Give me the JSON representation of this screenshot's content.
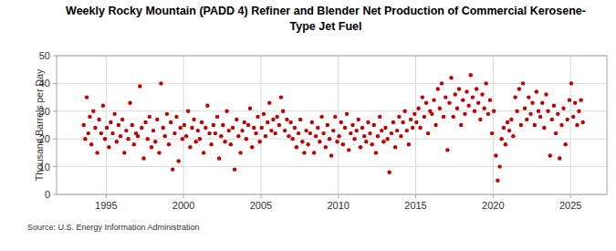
{
  "chart_data": {
    "type": "scatter",
    "title": "Weekly Rocky Mountain (PADD 4)  Refiner and Blender Net Production of Commercial Kerosene-Type Jet Fuel",
    "y_label": "Thousand Barrels per Day",
    "annotations": [
      "Source: U.S. Energy Information Administration"
    ],
    "xlim": [
      1991.8,
      2027.35
    ],
    "xticks": [
      1995,
      2000,
      2005,
      2010,
      2015,
      2020,
      2025
    ],
    "ylim": [
      0,
      50
    ],
    "yticks": [
      0,
      10,
      20,
      30,
      40,
      50
    ],
    "grid": true,
    "marker": "circle",
    "series": [
      {
        "name": "Commercial Kerosene-Type Jet Fuel",
        "color": "#c00000",
        "x": [
          1993.55,
          1993.65,
          1993.75,
          1993.85,
          1993.95,
          1994.05,
          1994.18,
          1994.3,
          1994.43,
          1994.55,
          1994.68,
          1994.8,
          1994.93,
          1995.05,
          1995.18,
          1995.3,
          1995.43,
          1995.55,
          1995.68,
          1995.8,
          1995.93,
          1996.05,
          1996.18,
          1996.3,
          1996.43,
          1996.55,
          1996.68,
          1996.8,
          1996.93,
          1997.05,
          1997.18,
          1997.3,
          1997.43,
          1997.55,
          1997.68,
          1997.8,
          1997.93,
          1998.05,
          1998.18,
          1998.3,
          1998.43,
          1998.55,
          1998.68,
          1998.8,
          1998.93,
          1999.05,
          1999.18,
          1999.3,
          1999.43,
          1999.55,
          1999.68,
          1999.8,
          1999.93,
          2000.05,
          2000.18,
          2000.3,
          2000.43,
          2000.55,
          2000.68,
          2000.8,
          2000.93,
          2001.05,
          2001.18,
          2001.3,
          2001.43,
          2001.55,
          2001.68,
          2001.8,
          2001.93,
          2002.05,
          2002.18,
          2002.3,
          2002.43,
          2002.55,
          2002.68,
          2002.8,
          2002.93,
          2003.05,
          2003.18,
          2003.3,
          2003.43,
          2003.55,
          2003.68,
          2003.8,
          2003.93,
          2004.05,
          2004.18,
          2004.3,
          2004.43,
          2004.55,
          2004.68,
          2004.8,
          2004.93,
          2005.05,
          2005.18,
          2005.3,
          2005.43,
          2005.55,
          2005.68,
          2005.8,
          2005.93,
          2006.05,
          2006.18,
          2006.3,
          2006.43,
          2006.55,
          2006.68,
          2006.8,
          2006.93,
          2007.05,
          2007.18,
          2007.3,
          2007.43,
          2007.55,
          2007.68,
          2007.8,
          2007.93,
          2008.05,
          2008.18,
          2008.3,
          2008.43,
          2008.55,
          2008.68,
          2008.8,
          2008.93,
          2009.05,
          2009.18,
          2009.3,
          2009.43,
          2009.55,
          2009.68,
          2009.8,
          2009.93,
          2010.05,
          2010.18,
          2010.3,
          2010.43,
          2010.55,
          2010.68,
          2010.8,
          2010.93,
          2011.05,
          2011.18,
          2011.3,
          2011.43,
          2011.55,
          2011.68,
          2011.8,
          2011.93,
          2012.05,
          2012.18,
          2012.3,
          2012.43,
          2012.55,
          2012.68,
          2012.8,
          2012.93,
          2013.05,
          2013.18,
          2013.3,
          2013.43,
          2013.55,
          2013.68,
          2013.8,
          2013.93,
          2014.05,
          2014.18,
          2014.3,
          2014.43,
          2014.55,
          2014.68,
          2014.8,
          2014.93,
          2015.05,
          2015.18,
          2015.3,
          2015.43,
          2015.55,
          2015.68,
          2015.8,
          2015.93,
          2016.05,
          2016.18,
          2016.3,
          2016.43,
          2016.55,
          2016.68,
          2016.8,
          2016.93,
          2017.05,
          2017.18,
          2017.3,
          2017.43,
          2017.55,
          2017.68,
          2017.8,
          2017.93,
          2018.05,
          2018.18,
          2018.3,
          2018.43,
          2018.55,
          2018.68,
          2018.8,
          2018.93,
          2019.05,
          2019.18,
          2019.3,
          2019.43,
          2019.55,
          2019.68,
          2019.8,
          2019.93,
          2020.05,
          2020.18,
          2020.3,
          2020.43,
          2020.55,
          2020.68,
          2020.8,
          2020.93,
          2021.05,
          2021.18,
          2021.3,
          2021.43,
          2021.55,
          2021.68,
          2021.8,
          2021.93,
          2022.05,
          2022.18,
          2022.3,
          2022.43,
          2022.55,
          2022.68,
          2022.8,
          2022.93,
          2023.05,
          2023.18,
          2023.3,
          2023.43,
          2023.55,
          2023.68,
          2023.8,
          2023.93,
          2024.05,
          2024.18,
          2024.3,
          2024.43,
          2024.55,
          2024.68,
          2024.8,
          2024.93,
          2025.05,
          2025.18,
          2025.3,
          2025.43,
          2025.55,
          2025.68,
          2025.8
        ],
        "values": [
          25,
          20,
          35,
          22,
          28,
          18,
          30,
          24,
          15,
          27,
          22,
          32,
          20,
          24,
          17,
          26,
          22,
          29,
          19,
          25,
          21,
          27,
          15,
          23,
          20,
          33,
          25,
          18,
          22,
          21,
          39,
          24,
          13,
          26,
          20,
          28,
          17,
          23,
          19,
          27,
          15,
          40,
          24,
          21,
          29,
          18,
          26,
          9,
          22,
          28,
          12,
          24,
          20,
          25,
          21,
          30,
          17,
          24,
          27,
          19,
          23,
          20,
          26,
          15,
          24,
          32,
          22,
          18,
          25,
          22,
          28,
          13,
          21,
          25,
          19,
          30,
          23,
          18,
          24,
          9,
          27,
          21,
          15,
          23,
          26,
          20,
          25,
          31,
          17,
          24,
          22,
          28,
          19,
          24,
          29,
          21,
          26,
          33,
          23,
          27,
          22,
          28,
          25,
          35,
          30,
          23,
          27,
          21,
          26,
          20,
          24,
          17,
          22,
          27,
          19,
          15,
          23,
          18,
          22,
          26,
          15,
          21,
          24,
          19,
          28,
          22,
          17,
          25,
          20,
          14,
          23,
          28,
          19,
          21,
          26,
          18,
          24,
          29,
          16,
          22,
          25,
          20,
          23,
          27,
          17,
          24,
          21,
          19,
          26,
          22,
          18,
          25,
          15,
          21,
          28,
          23,
          19,
          24,
          20,
          8,
          22,
          26,
          17,
          23,
          28,
          21,
          26,
          30,
          23,
          18,
          27,
          24,
          29,
          26,
          31,
          24,
          35,
          28,
          33,
          22,
          30,
          29,
          34,
          25,
          38,
          31,
          40,
          28,
          35,
          16,
          33,
          42,
          28,
          36,
          31,
          38,
          25,
          34,
          29,
          37,
          32,
          43,
          35,
          30,
          38,
          33,
          27,
          36,
          31,
          40,
          29,
          34,
          22,
          30,
          14,
          5,
          10,
          20,
          24,
          18,
          26,
          23,
          27,
          21,
          35,
          30,
          38,
          25,
          40,
          31,
          27,
          35,
          29,
          33,
          25,
          37,
          30,
          28,
          33,
          24,
          36,
          30,
          14,
          27,
          32,
          22,
          29,
          13,
          25,
          31,
          18,
          27,
          34,
          40,
          28,
          33,
          25,
          30,
          34,
          26
        ]
      }
    ]
  }
}
